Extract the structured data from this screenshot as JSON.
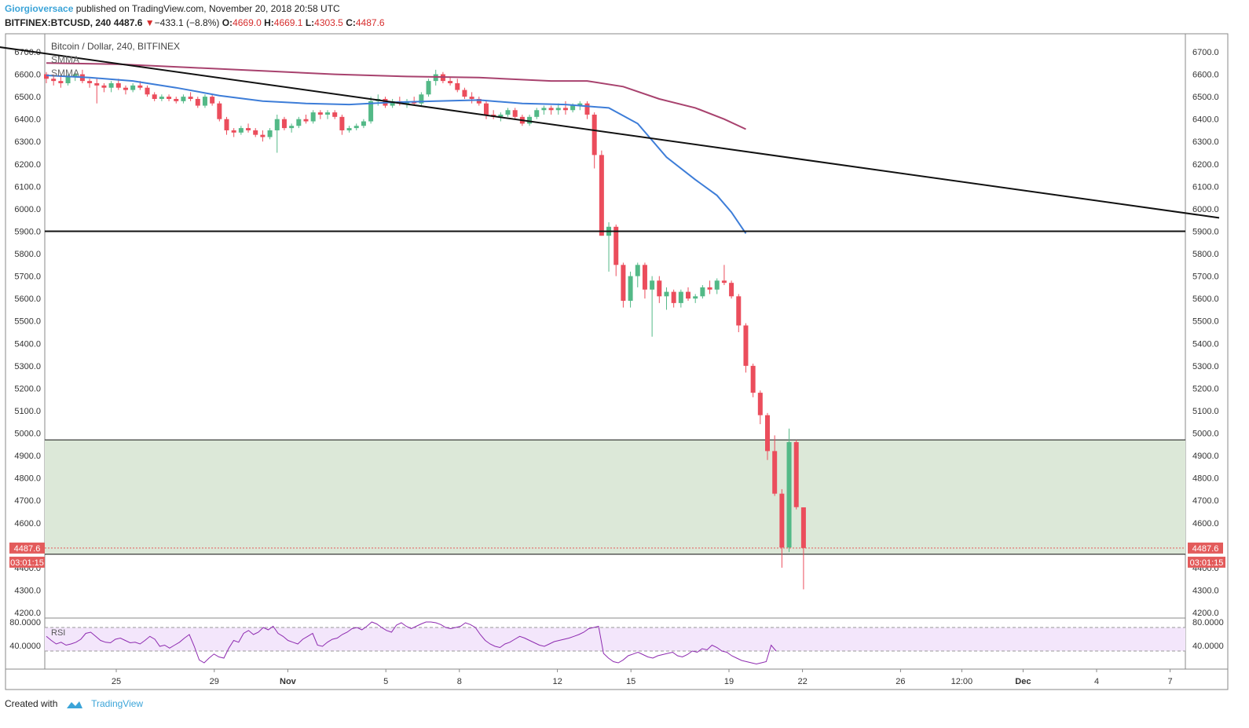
{
  "header": {
    "author": "Giorgioversace",
    "published_text": "published on TradingView.com, November 20, 2018 20:58 UTC",
    "symbol": "BITFINEX:BTCUSD, 240",
    "last": "4487.6",
    "change_arrow": "▼",
    "change": "−433.1 (−8.8%)",
    "o_label": "O:",
    "o_value": "4669.0",
    "h_label": "H:",
    "h_value": "4669.1",
    "l_label": "L:",
    "l_value": "4303.5",
    "c_label": "C:",
    "c_value": "4487.6"
  },
  "legend": {
    "title": "Bitcoin / Dollar, 240, BITFINEX",
    "smma1": "SMMA",
    "smma2": "SMMA",
    "rsi": "RSI"
  },
  "price_badge": "4487.6",
  "countdown_badge": "03:01:15",
  "footer": {
    "created_with": "Created with",
    "brand": "TradingView"
  },
  "colors": {
    "up": "#53b987",
    "down": "#eb4d5c",
    "smma_fast": "#3d7dd8",
    "smma_slow": "#a8426e",
    "zone_fill": "#dce8d8",
    "rsi_line": "#8e2bb0",
    "rsi_band": "#f3e6fb",
    "price_badge": "#e35b5b"
  },
  "chart_data": {
    "type": "candlestick",
    "ylim": [
      4200,
      6750
    ],
    "y_ticks": [
      "6700.0",
      "6600.0",
      "6500.0",
      "6400.0",
      "6300.0",
      "6200.0",
      "6100.0",
      "6000.0",
      "5900.0",
      "5800.0",
      "5700.0",
      "5600.0",
      "5500.0",
      "5400.0",
      "5300.0",
      "5200.0",
      "5100.0",
      "5000.0",
      "4900.0",
      "4800.0",
      "4700.0",
      "4600.0",
      "4500.0",
      "4400.0",
      "4300.0",
      "4200.0"
    ],
    "x_ticks": [
      {
        "label": "25",
        "t": 3
      },
      {
        "label": "29",
        "t": 7
      },
      {
        "label": "Nov",
        "t": 10
      },
      {
        "label": "5",
        "t": 14
      },
      {
        "label": "8",
        "t": 17
      },
      {
        "label": "12",
        "t": 21
      },
      {
        "label": "15",
        "t": 24
      },
      {
        "label": "19",
        "t": 28
      },
      {
        "label": "22",
        "t": 31
      },
      {
        "label": "26",
        "t": 35
      },
      {
        "label": "12:00",
        "t": 37.5
      },
      {
        "label": "Dec",
        "t": 40
      },
      {
        "label": "4",
        "t": 43
      },
      {
        "label": "7",
        "t": 46
      }
    ],
    "horizontal_levels": [
      5900,
      4970,
      4460
    ],
    "support_zone": [
      4460,
      4970
    ],
    "trendline": {
      "from": [
        -3,
        6740
      ],
      "to": [
        48,
        5960
      ]
    },
    "price_line": 4487.6,
    "candles": [
      [
        6600,
        6610,
        6560,
        6580
      ],
      [
        6580,
        6600,
        6550,
        6570
      ],
      [
        6570,
        6590,
        6540,
        6560
      ],
      [
        6560,
        6600,
        6550,
        6590
      ],
      [
        6590,
        6610,
        6570,
        6600
      ],
      [
        6600,
        6620,
        6560,
        6570
      ],
      [
        6570,
        6580,
        6540,
        6560
      ],
      [
        6560,
        6580,
        6470,
        6550
      ],
      [
        6550,
        6560,
        6520,
        6540
      ],
      [
        6540,
        6570,
        6520,
        6560
      ],
      [
        6560,
        6580,
        6530,
        6540
      ],
      [
        6540,
        6550,
        6510,
        6530
      ],
      [
        6530,
        6560,
        6520,
        6550
      ],
      [
        6550,
        6570,
        6530,
        6540
      ],
      [
        6540,
        6550,
        6500,
        6510
      ],
      [
        6510,
        6520,
        6480,
        6490
      ],
      [
        6490,
        6510,
        6480,
        6500
      ],
      [
        6500,
        6510,
        6480,
        6490
      ],
      [
        6490,
        6500,
        6470,
        6480
      ],
      [
        6480,
        6510,
        6470,
        6500
      ],
      [
        6500,
        6520,
        6480,
        6490
      ],
      [
        6490,
        6500,
        6450,
        6460
      ],
      [
        6460,
        6510,
        6450,
        6500
      ],
      [
        6500,
        6510,
        6460,
        6470
      ],
      [
        6470,
        6480,
        6390,
        6400
      ],
      [
        6400,
        6410,
        6330,
        6350
      ],
      [
        6350,
        6360,
        6320,
        6340
      ],
      [
        6340,
        6370,
        6330,
        6360
      ],
      [
        6360,
        6380,
        6340,
        6350
      ],
      [
        6350,
        6360,
        6320,
        6330
      ],
      [
        6330,
        6350,
        6300,
        6320
      ],
      [
        6320,
        6360,
        6310,
        6350
      ],
      [
        6350,
        6420,
        6250,
        6400
      ],
      [
        6400,
        6410,
        6350,
        6360
      ],
      [
        6360,
        6380,
        6340,
        6370
      ],
      [
        6370,
        6410,
        6360,
        6400
      ],
      [
        6400,
        6420,
        6380,
        6390
      ],
      [
        6390,
        6440,
        6380,
        6430
      ],
      [
        6430,
        6440,
        6400,
        6420
      ],
      [
        6420,
        6440,
        6400,
        6430
      ],
      [
        6430,
        6440,
        6400,
        6410
      ],
      [
        6410,
        6420,
        6330,
        6350
      ],
      [
        6350,
        6370,
        6340,
        6360
      ],
      [
        6360,
        6380,
        6350,
        6370
      ],
      [
        6370,
        6400,
        6360,
        6390
      ],
      [
        6390,
        6500,
        6380,
        6480
      ],
      [
        6480,
        6510,
        6460,
        6490
      ],
      [
        6490,
        6500,
        6450,
        6460
      ],
      [
        6460,
        6490,
        6450,
        6480
      ],
      [
        6480,
        6500,
        6460,
        6470
      ],
      [
        6470,
        6490,
        6450,
        6480
      ],
      [
        6480,
        6500,
        6460,
        6470
      ],
      [
        6470,
        6520,
        6460,
        6510
      ],
      [
        6510,
        6580,
        6500,
        6570
      ],
      [
        6570,
        6620,
        6550,
        6600
      ],
      [
        6600,
        6610,
        6560,
        6570
      ],
      [
        6570,
        6590,
        6550,
        6560
      ],
      [
        6560,
        6580,
        6520,
        6530
      ],
      [
        6530,
        6540,
        6490,
        6500
      ],
      [
        6500,
        6520,
        6470,
        6490
      ],
      [
        6490,
        6500,
        6460,
        6470
      ],
      [
        6470,
        6480,
        6400,
        6420
      ],
      [
        6420,
        6440,
        6400,
        6410
      ],
      [
        6410,
        6430,
        6390,
        6420
      ],
      [
        6420,
        6450,
        6410,
        6440
      ],
      [
        6440,
        6450,
        6400,
        6410
      ],
      [
        6410,
        6420,
        6370,
        6380
      ],
      [
        6380,
        6420,
        6370,
        6410
      ],
      [
        6410,
        6450,
        6400,
        6440
      ],
      [
        6440,
        6460,
        6420,
        6450
      ],
      [
        6450,
        6460,
        6420,
        6440
      ],
      [
        6440,
        6470,
        6420,
        6450
      ],
      [
        6450,
        6480,
        6420,
        6440
      ],
      [
        6440,
        6470,
        6430,
        6460
      ],
      [
        6460,
        6480,
        6440,
        6470
      ],
      [
        6470,
        6480,
        6400,
        6420
      ],
      [
        6420,
        6430,
        6180,
        6240
      ],
      [
        6240,
        6260,
        5880,
        5880
      ],
      [
        5880,
        5940,
        5720,
        5920
      ],
      [
        5920,
        5930,
        5700,
        5750
      ],
      [
        5750,
        5760,
        5560,
        5590
      ],
      [
        5590,
        5720,
        5560,
        5700
      ],
      [
        5700,
        5760,
        5650,
        5750
      ],
      [
        5750,
        5760,
        5600,
        5640
      ],
      [
        5640,
        5700,
        5430,
        5680
      ],
      [
        5680,
        5700,
        5580,
        5610
      ],
      [
        5610,
        5650,
        5550,
        5630
      ],
      [
        5630,
        5640,
        5560,
        5580
      ],
      [
        5580,
        5640,
        5560,
        5630
      ],
      [
        5630,
        5650,
        5590,
        5600
      ],
      [
        5600,
        5620,
        5580,
        5610
      ],
      [
        5610,
        5660,
        5600,
        5650
      ],
      [
        5650,
        5680,
        5620,
        5640
      ],
      [
        5640,
        5690,
        5620,
        5680
      ],
      [
        5680,
        5750,
        5660,
        5670
      ],
      [
        5670,
        5680,
        5600,
        5610
      ],
      [
        5610,
        5620,
        5450,
        5480
      ],
      [
        5480,
        5490,
        5270,
        5300
      ],
      [
        5300,
        5310,
        5160,
        5180
      ],
      [
        5180,
        5190,
        5040,
        5080
      ],
      [
        5080,
        5090,
        4880,
        4920
      ],
      [
        4920,
        4990,
        4720,
        4730
      ],
      [
        4730,
        4750,
        4400,
        4490
      ],
      [
        4490,
        5020,
        4470,
        4960
      ],
      [
        4960,
        4970,
        4660,
        4670
      ],
      [
        4669,
        4669.1,
        4303.5,
        4487.6
      ]
    ],
    "smma_fast": [
      [
        0,
        6595
      ],
      [
        6,
        6585
      ],
      [
        12,
        6570
      ],
      [
        18,
        6540
      ],
      [
        24,
        6505
      ],
      [
        30,
        6480
      ],
      [
        36,
        6470
      ],
      [
        42,
        6465
      ],
      [
        48,
        6475
      ],
      [
        54,
        6480
      ],
      [
        60,
        6485
      ],
      [
        66,
        6470
      ],
      [
        72,
        6465
      ],
      [
        78,
        6450
      ],
      [
        82,
        6380
      ],
      [
        86,
        6230
      ],
      [
        90,
        6130
      ],
      [
        93,
        6060
      ],
      [
        95,
        5985
      ],
      [
        97,
        5890
      ]
    ],
    "smma_slow": [
      [
        0,
        6650
      ],
      [
        10,
        6645
      ],
      [
        20,
        6630
      ],
      [
        30,
        6615
      ],
      [
        40,
        6600
      ],
      [
        50,
        6590
      ],
      [
        60,
        6585
      ],
      [
        70,
        6570
      ],
      [
        75,
        6570
      ],
      [
        80,
        6545
      ],
      [
        85,
        6490
      ],
      [
        90,
        6450
      ],
      [
        94,
        6400
      ],
      [
        97,
        6355
      ]
    ],
    "rsi": {
      "ylim": [
        0,
        100
      ],
      "ticks": [
        "80.0000",
        "40.0000"
      ],
      "bands": [
        70,
        30
      ],
      "values": [
        55,
        48,
        42,
        45,
        40,
        42,
        45,
        50,
        60,
        62,
        55,
        48,
        45,
        44,
        50,
        52,
        48,
        44,
        45,
        42,
        48,
        55,
        50,
        38,
        40,
        35,
        40,
        45,
        52,
        58,
        38,
        15,
        10,
        18,
        25,
        20,
        18,
        35,
        48,
        45,
        60,
        65,
        58,
        62,
        70,
        66,
        72,
        60,
        55,
        48,
        45,
        42,
        50,
        55,
        60,
        40,
        38,
        45,
        50,
        52,
        58,
        62,
        68,
        70,
        66,
        72,
        80,
        76,
        70,
        65,
        62,
        74,
        78,
        72,
        68,
        72,
        76,
        80,
        86,
        78,
        75,
        70,
        68,
        70,
        72,
        78,
        75,
        70,
        58,
        48,
        42,
        38,
        36,
        42,
        45,
        50,
        55,
        52,
        48,
        44,
        40,
        38,
        42,
        46,
        48,
        50,
        52,
        55,
        58,
        62,
        68,
        70,
        72,
        26,
        18,
        12,
        10,
        15,
        22,
        25,
        28,
        24,
        20,
        18,
        22,
        24,
        26,
        28,
        22,
        20,
        24,
        30,
        28,
        34,
        32,
        40,
        36,
        30,
        28,
        22,
        18,
        14,
        12,
        10,
        8,
        10,
        12,
        40,
        30
      ]
    }
  }
}
